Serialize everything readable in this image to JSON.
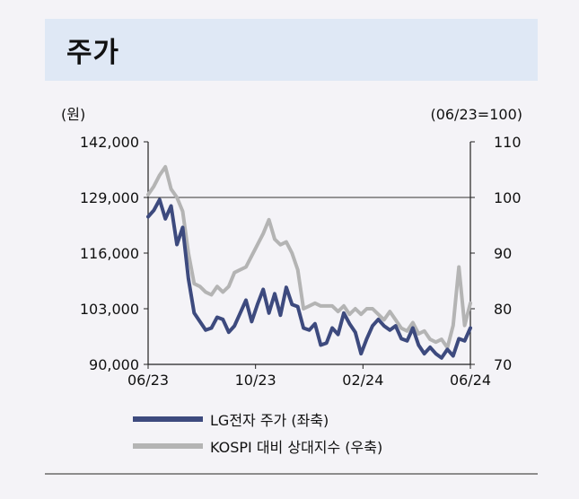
{
  "header": {
    "title": "주가"
  },
  "chart_data": {
    "type": "line",
    "left_unit": "(원)",
    "right_unit": "(06/23=100)",
    "left_ticks": [
      "142,000",
      "129,000",
      "116,000",
      "103,000",
      "90,000"
    ],
    "right_ticks": [
      "110",
      "100",
      "90",
      "80",
      "70"
    ],
    "x_ticks": [
      "06/23",
      "10/23",
      "02/24",
      "06/24"
    ],
    "ylim_left": [
      90000,
      142000
    ],
    "ylim_right": [
      70,
      110
    ],
    "reference_line_right": 100,
    "x_dates": [
      "2023-06-01",
      "2023-06-08",
      "2023-06-15",
      "2023-06-22",
      "2023-06-29",
      "2023-07-06",
      "2023-07-13",
      "2023-07-20",
      "2023-07-27",
      "2023-08-03",
      "2023-08-10",
      "2023-08-17",
      "2023-08-24",
      "2023-08-31",
      "2023-09-07",
      "2023-09-14",
      "2023-09-21",
      "2023-09-28",
      "2023-10-05",
      "2023-10-12",
      "2023-10-19",
      "2023-10-26",
      "2023-11-02",
      "2023-11-09",
      "2023-11-16",
      "2023-11-23",
      "2023-11-30",
      "2023-12-07",
      "2023-12-14",
      "2023-12-21",
      "2023-12-28",
      "2024-01-04",
      "2024-01-11",
      "2024-01-18",
      "2024-01-25",
      "2024-02-01",
      "2024-02-08",
      "2024-02-15",
      "2024-02-22",
      "2024-02-29",
      "2024-03-07",
      "2024-03-14",
      "2024-03-21",
      "2024-03-28",
      "2024-04-04",
      "2024-04-11",
      "2024-04-18",
      "2024-04-25",
      "2024-05-02",
      "2024-05-09",
      "2024-05-16",
      "2024-05-23",
      "2024-05-30",
      "2024-06-06",
      "2024-06-13",
      "2024-06-20",
      "2024-06-27"
    ],
    "series": [
      {
        "name": "LG전자 주가 (좌축)",
        "axis": "left",
        "color": "#3d4a7e",
        "values": [
          124500,
          126000,
          128500,
          124000,
          127000,
          118000,
          122000,
          110000,
          102000,
          100000,
          98000,
          98500,
          101000,
          100500,
          97500,
          99000,
          102000,
          105000,
          100000,
          104000,
          107500,
          102000,
          106500,
          101500,
          108000,
          104000,
          103500,
          98500,
          98000,
          99500,
          94500,
          95000,
          98500,
          97000,
          102000,
          99500,
          97500,
          92500,
          96000,
          99000,
          100500,
          99000,
          98000,
          99000,
          96000,
          95500,
          98500,
          94500,
          92500,
          94000,
          92500,
          91500,
          93500,
          92000,
          96000,
          95500,
          98500
        ]
      },
      {
        "name": "KOSPI 대비 상대지수 (우축)",
        "axis": "right",
        "color": "#b4b4b4",
        "values": [
          100.5,
          102,
          104,
          105.5,
          101.5,
          100,
          97.5,
          90,
          84.5,
          84,
          83,
          82.5,
          84,
          83,
          84,
          86.5,
          87,
          87.5,
          89.5,
          91.5,
          93.5,
          96,
          92.5,
          91.5,
          92,
          90,
          87,
          80,
          80.5,
          81,
          80.5,
          80.5,
          80.5,
          79.5,
          80.5,
          79,
          80,
          79,
          80,
          80,
          79,
          78,
          79.5,
          78,
          76.5,
          76,
          77.5,
          75.5,
          76,
          74.5,
          74,
          74.5,
          73,
          77,
          87.5,
          77,
          81
        ]
      }
    ]
  },
  "legend": [
    {
      "label": "LG전자 주가 (좌축)",
      "color": "#3d4a7e"
    },
    {
      "label": "KOSPI 대비 상대지수 (우축)",
      "color": "#b4b4b4"
    }
  ]
}
